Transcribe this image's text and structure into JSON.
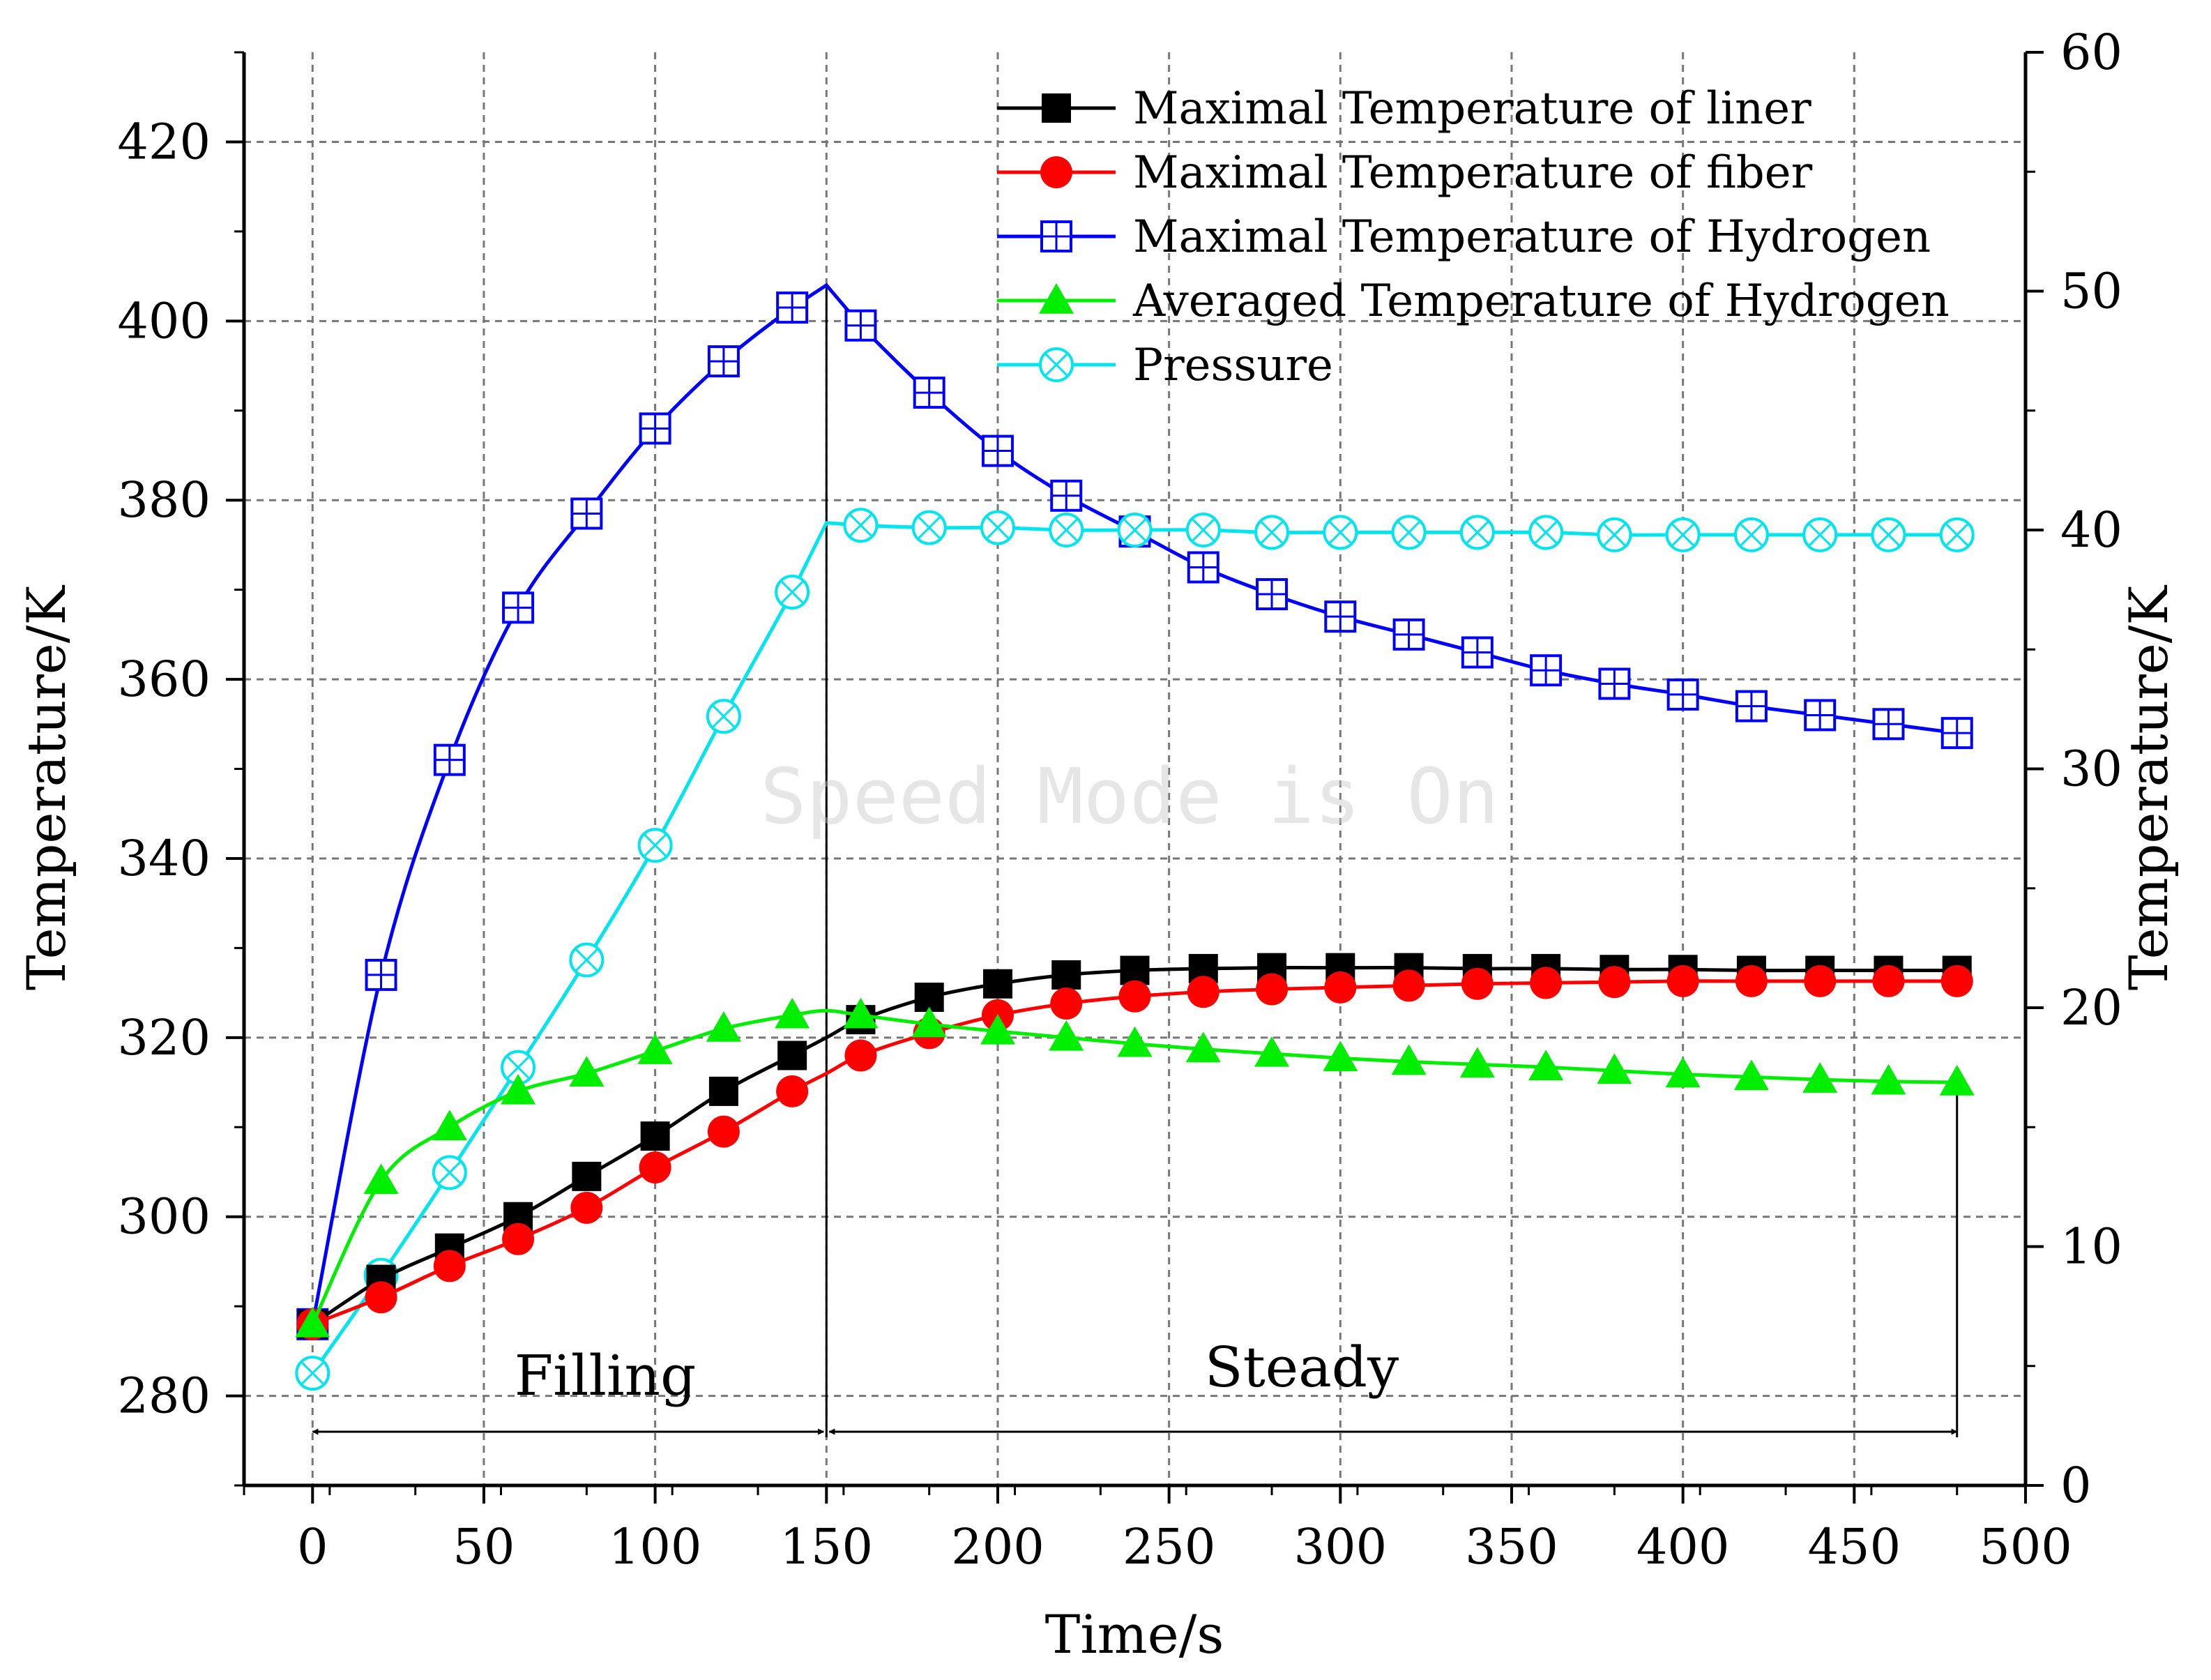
{
  "chart_data": {
    "type": "line",
    "title": "",
    "xlabel": "Time/s",
    "ylabel": "Temperature/K",
    "y2label": "Temperature/K",
    "xlim": [
      -20,
      500
    ],
    "ylim": [
      270,
      430
    ],
    "y2lim": [
      0,
      60
    ],
    "xticks": [
      0,
      50,
      100,
      150,
      200,
      250,
      300,
      350,
      400,
      450,
      500
    ],
    "yticks": [
      280,
      300,
      320,
      340,
      360,
      380,
      400,
      420
    ],
    "y2ticks": [
      0,
      10,
      20,
      30,
      40,
      50,
      60
    ],
    "grid": true,
    "legend_position": "top-right",
    "series": [
      {
        "name": "Maximal Temperature of liner",
        "axis": "left",
        "color": "#000000",
        "marker": "square",
        "x": [
          0,
          20,
          40,
          60,
          80,
          100,
          120,
          140,
          150,
          160,
          180,
          200,
          220,
          240,
          260,
          280,
          300,
          320,
          340,
          360,
          380,
          400,
          420,
          440,
          460,
          480
        ],
        "values": [
          288,
          293,
          296.5,
          300,
          304.5,
          309,
          314,
          318,
          320,
          322,
          324.5,
          326,
          327,
          327.5,
          327.7,
          327.8,
          327.8,
          327.8,
          327.7,
          327.7,
          327.6,
          327.6,
          327.5,
          327.5,
          327.5,
          327.5
        ]
      },
      {
        "name": "Maximal Temperature of fiber",
        "axis": "left",
        "color": "#ff0000",
        "marker": "circle",
        "x": [
          0,
          20,
          40,
          60,
          80,
          100,
          120,
          140,
          150,
          160,
          180,
          200,
          220,
          240,
          260,
          280,
          300,
          320,
          340,
          360,
          380,
          400,
          420,
          440,
          460,
          480
        ],
        "values": [
          288,
          291,
          294.5,
          297.5,
          301,
          305.5,
          309.5,
          314,
          316,
          318,
          320.5,
          322.5,
          323.8,
          324.6,
          325.1,
          325.4,
          325.6,
          325.8,
          326,
          326.1,
          326.2,
          326.3,
          326.3,
          326.3,
          326.3,
          326.3
        ]
      },
      {
        "name": "Maximal Temperature of Hydrogen",
        "axis": "left",
        "color": "#0000ff",
        "marker": "crossed-square",
        "x": [
          0,
          20,
          40,
          60,
          80,
          100,
          120,
          140,
          150,
          160,
          180,
          200,
          220,
          240,
          260,
          280,
          300,
          320,
          340,
          360,
          380,
          400,
          420,
          440,
          460,
          480
        ],
        "values": [
          288,
          327,
          351,
          368,
          378.5,
          388,
          395.5,
          401.5,
          404,
          399.5,
          392,
          385.5,
          380.5,
          376.5,
          372.5,
          369.5,
          367,
          365,
          363,
          361,
          359.5,
          358.3,
          357,
          356,
          355,
          354
        ]
      },
      {
        "name": "Averaged Temperature of Hydrogen",
        "axis": "left",
        "color": "#00ee00",
        "marker": "triangle",
        "x": [
          0,
          20,
          40,
          60,
          80,
          100,
          120,
          140,
          150,
          160,
          180,
          200,
          220,
          240,
          260,
          280,
          300,
          320,
          340,
          360,
          380,
          400,
          420,
          440,
          460,
          480
        ],
        "values": [
          288,
          304,
          310,
          314,
          316,
          318.5,
          321,
          322.5,
          323,
          322.5,
          321.5,
          320.7,
          320,
          319.3,
          318.7,
          318.2,
          317.7,
          317.3,
          317,
          316.7,
          316.3,
          315.9,
          315.6,
          315.3,
          315.1,
          315
        ]
      },
      {
        "name": "Pressure",
        "axis": "right",
        "color": "#00e5ee",
        "marker": "circle-x",
        "x": [
          0,
          20,
          40,
          60,
          80,
          100,
          120,
          140,
          150,
          160,
          180,
          200,
          220,
          240,
          260,
          280,
          300,
          320,
          340,
          360,
          380,
          400,
          420,
          440,
          460,
          480
        ],
        "values": [
          4.7,
          8.8,
          13.1,
          17.5,
          22,
          26.8,
          32.2,
          37.4,
          40.3,
          40.2,
          40.1,
          40.1,
          40,
          40,
          40,
          39.9,
          39.9,
          39.9,
          39.9,
          39.9,
          39.8,
          39.8,
          39.8,
          39.8,
          39.8,
          39.8
        ]
      }
    ],
    "annotations": {
      "filling_label": "Filling",
      "steady_label": "Steady",
      "divider_x": 150,
      "end_x": 480,
      "arrow_y": 276
    },
    "watermark": "Speed Mode is On"
  }
}
